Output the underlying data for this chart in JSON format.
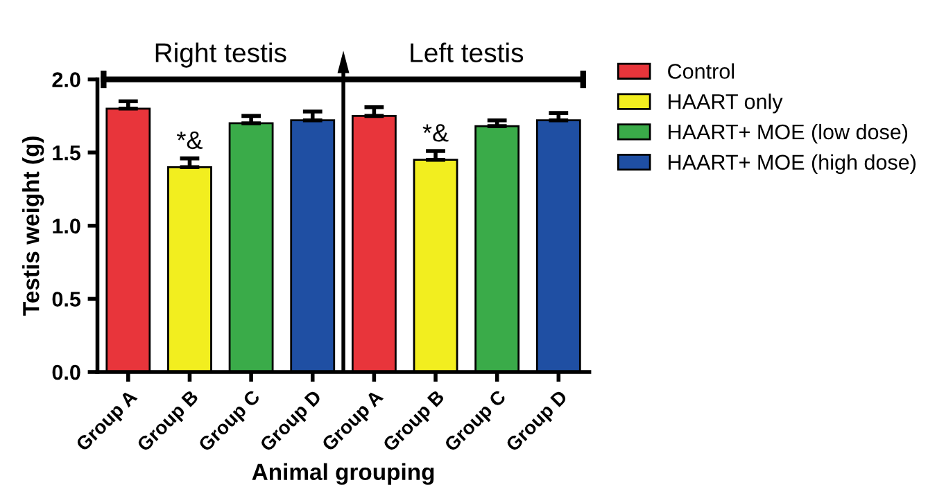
{
  "chart_data": {
    "type": "bar",
    "ylabel": "Testis weight (g)",
    "xlabel": "Animal grouping",
    "categories": [
      "Group A",
      "Group B",
      "Group C",
      "Group D",
      "Group A",
      "Group B",
      "Group C",
      "Group D"
    ],
    "series": [
      {
        "name": "Control",
        "color": "#e8353b",
        "values": [
          1.8,
          null,
          null,
          null,
          1.75,
          null,
          null,
          null
        ],
        "errors": [
          0.05,
          null,
          null,
          null,
          0.06,
          null,
          null,
          null
        ]
      },
      {
        "name": "HAART only",
        "color": "#f2ee1f",
        "values": [
          null,
          1.4,
          null,
          null,
          null,
          1.45,
          null,
          null
        ],
        "errors": [
          null,
          0.06,
          null,
          null,
          null,
          0.06,
          null,
          null
        ],
        "value_labels": [
          null,
          "*&",
          null,
          null,
          null,
          "*&",
          null,
          null
        ]
      },
      {
        "name": "HAART+ MOE (low dose)",
        "color": "#3aab49",
        "values": [
          null,
          null,
          1.7,
          null,
          null,
          null,
          1.68,
          null
        ],
        "errors": [
          null,
          null,
          0.05,
          null,
          null,
          null,
          0.04,
          null
        ]
      },
      {
        "name": "HAART+ MOE (high dose)",
        "color": "#1f4fa3",
        "values": [
          null,
          null,
          null,
          1.72,
          null,
          null,
          null,
          1.72
        ],
        "errors": [
          null,
          null,
          null,
          0.06,
          null,
          null,
          null,
          0.05
        ]
      }
    ],
    "ylim": [
      0,
      2.0
    ],
    "yticks": [
      {
        "value": 0,
        "label": "0.0"
      },
      {
        "value": 0.5,
        "label": "0.5"
      },
      {
        "value": 1.0,
        "label": "1.0"
      },
      {
        "value": 1.5,
        "label": "1.5"
      },
      {
        "value": 2.0,
        "label": "2.0"
      }
    ],
    "annotations": [
      "Right testis",
      "Left testis"
    ],
    "legend": "right",
    "grid": false
  }
}
